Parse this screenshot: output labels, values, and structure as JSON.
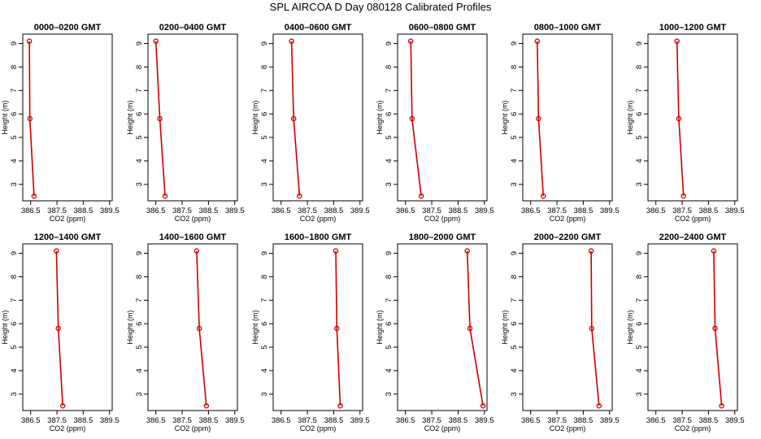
{
  "title": "SPL AIRCOA D  Day 080128  Calibrated Profiles",
  "chart_data": {
    "type": "line",
    "xlabel": "CO2 (ppm)",
    "ylabel": "Height (m)",
    "xlim": [
      386.2,
      389.6
    ],
    "ylim": [
      2.3,
      9.4
    ],
    "xticks": [
      386.5,
      387.5,
      388.5,
      389.5
    ],
    "xtick_labels": [
      "386.5",
      "387.5",
      "388.5",
      "389.5"
    ],
    "yticks": [
      3,
      4,
      5,
      6,
      7,
      8,
      9
    ],
    "yticks_labels": [
      "3",
      "4",
      "5",
      "6",
      "7",
      "8",
      "9"
    ],
    "grid": false,
    "line_color": "#cc0000",
    "panels": [
      {
        "title": "0000–0200 GMT",
        "points": [
          {
            "height": 9.1,
            "co2": 386.45
          },
          {
            "height": 5.8,
            "co2": 386.47
          },
          {
            "height": 2.5,
            "co2": 386.63
          }
        ]
      },
      {
        "title": "0200–0400 GMT",
        "points": [
          {
            "height": 9.1,
            "co2": 386.5
          },
          {
            "height": 5.8,
            "co2": 386.65
          },
          {
            "height": 2.5,
            "co2": 386.85
          }
        ]
      },
      {
        "title": "0400–0600 GMT",
        "points": [
          {
            "height": 9.1,
            "co2": 386.9
          },
          {
            "height": 5.8,
            "co2": 386.98
          },
          {
            "height": 2.5,
            "co2": 387.2
          }
        ]
      },
      {
        "title": "0600–0800 GMT",
        "points": [
          {
            "height": 9.1,
            "co2": 386.7
          },
          {
            "height": 5.8,
            "co2": 386.75
          },
          {
            "height": 2.5,
            "co2": 387.1
          }
        ]
      },
      {
        "title": "0800–1000 GMT",
        "points": [
          {
            "height": 9.1,
            "co2": 386.75
          },
          {
            "height": 5.8,
            "co2": 386.8
          },
          {
            "height": 2.5,
            "co2": 386.98
          }
        ]
      },
      {
        "title": "1000–1200 GMT",
        "points": [
          {
            "height": 9.1,
            "co2": 387.3
          },
          {
            "height": 5.8,
            "co2": 387.37
          },
          {
            "height": 2.5,
            "co2": 387.55
          }
        ]
      },
      {
        "title": "1200–1400 GMT",
        "points": [
          {
            "height": 9.1,
            "co2": 387.48
          },
          {
            "height": 5.8,
            "co2": 387.55
          },
          {
            "height": 2.5,
            "co2": 387.72
          }
        ]
      },
      {
        "title": "1400–1600 GMT",
        "points": [
          {
            "height": 9.1,
            "co2": 388.05
          },
          {
            "height": 5.8,
            "co2": 388.15
          },
          {
            "height": 2.5,
            "co2": 388.42
          }
        ]
      },
      {
        "title": "1600–1800 GMT",
        "points": [
          {
            "height": 9.1,
            "co2": 388.58
          },
          {
            "height": 5.8,
            "co2": 388.62
          },
          {
            "height": 2.5,
            "co2": 388.75
          }
        ]
      },
      {
        "title": "1800–2000 GMT",
        "points": [
          {
            "height": 9.1,
            "co2": 388.85
          },
          {
            "height": 5.8,
            "co2": 388.95
          },
          {
            "height": 2.5,
            "co2": 389.45
          }
        ]
      },
      {
        "title": "2000–2200 GMT",
        "points": [
          {
            "height": 9.1,
            "co2": 388.8
          },
          {
            "height": 5.8,
            "co2": 388.82
          },
          {
            "height": 2.5,
            "co2": 389.1
          }
        ]
      },
      {
        "title": "2200–2400 GMT",
        "points": [
          {
            "height": 9.1,
            "co2": 388.7
          },
          {
            "height": 5.8,
            "co2": 388.75
          },
          {
            "height": 2.5,
            "co2": 389.0
          }
        ]
      }
    ]
  }
}
